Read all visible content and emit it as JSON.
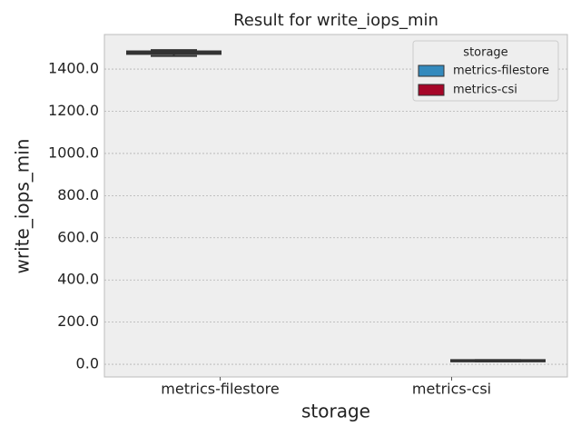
{
  "chart_data": {
    "type": "box",
    "title": "Result for write_iops_min",
    "x_label": "storage",
    "y_label": "write_iops_min",
    "categories": [
      "metrics-filestore",
      "metrics-csi"
    ],
    "series": [
      {
        "name": "metrics-filestore",
        "color": "#348ABD",
        "min": 1462,
        "q1": 1474,
        "median": 1478,
        "q3": 1482,
        "max": 1490
      },
      {
        "name": "metrics-csi",
        "color": "#A60628",
        "min": 14,
        "q1": 16,
        "median": 17,
        "q3": 18,
        "max": 20
      }
    ],
    "ylim": [
      -60,
      1564
    ],
    "yticks": [
      {
        "value": 0,
        "label": "0.0"
      },
      {
        "value": 200,
        "label": "200.0"
      },
      {
        "value": 400,
        "label": "400.0"
      },
      {
        "value": 600,
        "label": "600.0"
      },
      {
        "value": 800,
        "label": "800.0"
      },
      {
        "value": 1000,
        "label": "1000.0"
      },
      {
        "value": 1200,
        "label": "1200.0"
      },
      {
        "value": 1400,
        "label": "1400.0"
      }
    ],
    "grid": true,
    "legend_title": "storage",
    "legend_position": "upper right"
  }
}
